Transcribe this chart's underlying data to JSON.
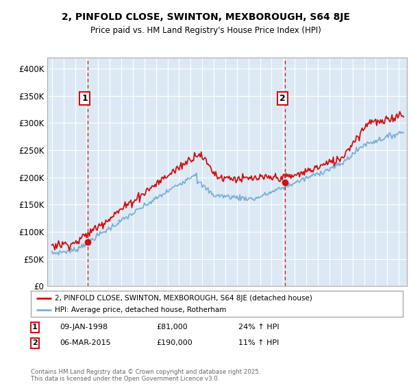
{
  "title": "2, PINFOLD CLOSE, SWINTON, MEXBOROUGH, S64 8JE",
  "subtitle": "Price paid vs. HM Land Registry's House Price Index (HPI)",
  "sale1_date": "09-JAN-1998",
  "sale1_price": 81000,
  "sale1_hpi": "24% ↑ HPI",
  "sale1_year": 1998.08,
  "sale2_date": "06-MAR-2015",
  "sale2_price": 190000,
  "sale2_hpi": "11% ↑ HPI",
  "sale2_year": 2015.17,
  "legend_line1": "2, PINFOLD CLOSE, SWINTON, MEXBOROUGH, S64 8JE (detached house)",
  "legend_line2": "HPI: Average price, detached house, Rotherham",
  "footer": "Contains HM Land Registry data © Crown copyright and database right 2025.\nThis data is licensed under the Open Government Licence v3.0.",
  "hpi_color": "#7bafd4",
  "price_color": "#cc1111",
  "vline_color": "#cc1111",
  "chart_bg": "#dce9f5",
  "background_color": "#ffffff",
  "grid_color": "#ffffff",
  "ylim": [
    0,
    420000
  ],
  "yticks": [
    0,
    50000,
    100000,
    150000,
    200000,
    250000,
    300000,
    350000,
    400000
  ],
  "xlim_start": 1994.6,
  "xlim_end": 2025.7
}
